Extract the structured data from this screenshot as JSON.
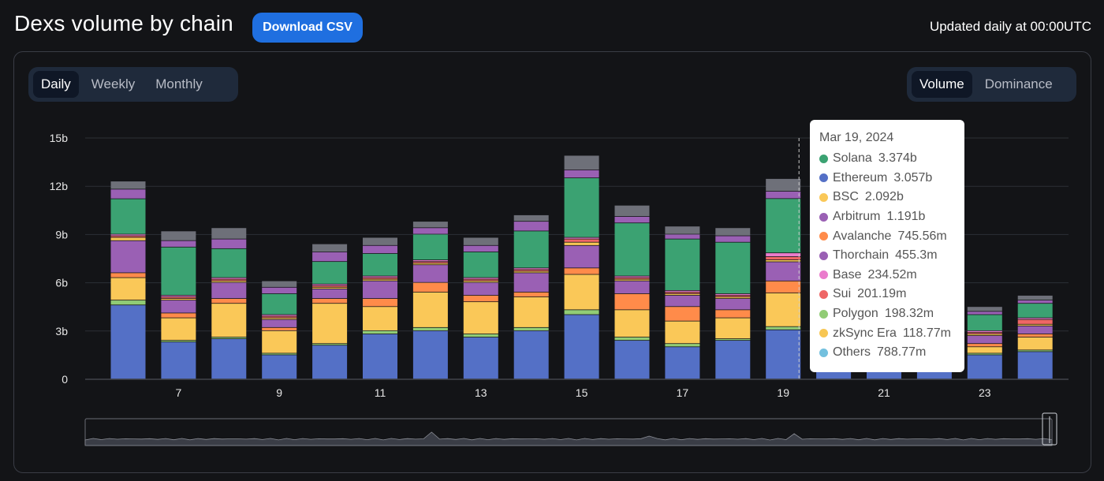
{
  "header": {
    "title": "Dexs volume by chain",
    "download_label": "Download CSV",
    "updated_text": "Updated daily at 00:00UTC"
  },
  "period_tabs": [
    {
      "label": "Daily",
      "active": true
    },
    {
      "label": "Weekly",
      "active": false
    },
    {
      "label": "Monthly",
      "active": false
    }
  ],
  "view_tabs": [
    {
      "label": "Volume",
      "active": true
    },
    {
      "label": "Dominance",
      "active": false
    }
  ],
  "chart_data": {
    "type": "bar",
    "stacked": true,
    "ylim": [
      0,
      15
    ],
    "y_ticks": [
      {
        "v": 0,
        "label": "0"
      },
      {
        "v": 3,
        "label": "3b"
      },
      {
        "v": 6,
        "label": "6b"
      },
      {
        "v": 9,
        "label": "9b"
      },
      {
        "v": 12,
        "label": "12b"
      },
      {
        "v": 15,
        "label": "15b"
      }
    ],
    "x": [
      6,
      7,
      8,
      9,
      10,
      11,
      12,
      13,
      14,
      15,
      16,
      17,
      18,
      19,
      20,
      21,
      22,
      23,
      24
    ],
    "x_tick_labels": [
      "7",
      "9",
      "11",
      "13",
      "15",
      "17",
      "19",
      "21",
      "23"
    ],
    "x_tick_values": [
      7,
      9,
      11,
      13,
      15,
      17,
      19,
      21,
      23
    ],
    "grid": true,
    "series": [
      {
        "name": "Ethereum",
        "color": "#5470c6",
        "values": [
          4.6,
          2.3,
          2.5,
          1.5,
          2.1,
          2.8,
          3.0,
          2.6,
          3.0,
          4.0,
          2.4,
          2.0,
          2.4,
          3.057,
          2.5,
          2.4,
          2.4,
          1.5,
          1.7
        ]
      },
      {
        "name": "Polygon",
        "color": "#91cc75",
        "values": [
          0.3,
          0.1,
          0.1,
          0.1,
          0.1,
          0.2,
          0.2,
          0.2,
          0.2,
          0.3,
          0.2,
          0.2,
          0.1,
          0.198,
          0.1,
          0.1,
          0.1,
          0.1,
          0.1
        ]
      },
      {
        "name": "BSC",
        "color": "#fac858",
        "values": [
          1.4,
          1.4,
          2.1,
          1.4,
          2.5,
          1.5,
          2.2,
          2.0,
          1.9,
          2.2,
          1.7,
          1.4,
          1.3,
          2.092,
          1.0,
          1.0,
          1.0,
          0.4,
          0.8
        ]
      },
      {
        "name": "Avalanche",
        "color": "#ff8b4a",
        "values": [
          0.3,
          0.3,
          0.3,
          0.2,
          0.3,
          0.5,
          0.6,
          0.4,
          0.3,
          0.4,
          1.0,
          0.9,
          0.5,
          0.746,
          0.3,
          0.3,
          0.3,
          0.2,
          0.2
        ]
      },
      {
        "name": "Arbitrum",
        "color": "#9a60b4",
        "values": [
          2.0,
          0.8,
          1.0,
          0.5,
          0.6,
          1.1,
          1.1,
          0.8,
          1.2,
          1.4,
          0.8,
          0.7,
          0.7,
          1.191,
          0.5,
          0.5,
          0.5,
          0.5,
          0.5
        ]
      },
      {
        "name": "zkSync Era",
        "color": "#f7c653",
        "values": [
          0.2,
          0.1,
          0.1,
          0.1,
          0.1,
          0.1,
          0.1,
          0.1,
          0.1,
          0.2,
          0.1,
          0.1,
          0.1,
          0.119,
          0.1,
          0.1,
          0.1,
          0.1,
          0.1
        ]
      },
      {
        "name": "Sui",
        "color": "#ee6666",
        "values": [
          0.1,
          0.1,
          0.1,
          0.1,
          0.1,
          0.1,
          0.1,
          0.1,
          0.1,
          0.2,
          0.1,
          0.1,
          0.1,
          0.201,
          0.1,
          0.1,
          0.1,
          0.1,
          0.3
        ]
      },
      {
        "name": "Base",
        "color": "#ea7ccc",
        "values": [
          0.1,
          0.1,
          0.1,
          0.1,
          0.1,
          0.1,
          0.1,
          0.1,
          0.1,
          0.1,
          0.1,
          0.1,
          0.1,
          0.235,
          0.1,
          0.1,
          0.1,
          0.1,
          0.1
        ]
      },
      {
        "name": "Solana",
        "color": "#3ba272",
        "values": [
          2.2,
          3.0,
          1.8,
          1.3,
          1.4,
          1.4,
          1.6,
          1.6,
          2.3,
          3.7,
          3.3,
          3.2,
          3.2,
          3.374,
          1.5,
          1.5,
          1.5,
          1.0,
          0.9
        ]
      },
      {
        "name": "Thorchain",
        "color": "#9a60b4",
        "values": [
          0.6,
          0.4,
          0.6,
          0.4,
          0.6,
          0.5,
          0.4,
          0.4,
          0.6,
          0.5,
          0.4,
          0.3,
          0.4,
          0.455,
          0.3,
          0.3,
          0.3,
          0.2,
          0.2
        ]
      },
      {
        "name": "Others",
        "color": "#6e7079",
        "values": [
          0.5,
          0.6,
          0.7,
          0.4,
          0.5,
          0.5,
          0.4,
          0.5,
          0.4,
          0.9,
          0.7,
          0.5,
          0.5,
          0.789,
          0.4,
          0.4,
          0.4,
          0.3,
          0.3
        ]
      }
    ]
  },
  "tooltip": {
    "date": "Mar 19, 2024",
    "rows": [
      {
        "name": "Solana",
        "value": "3.374b",
        "color": "#3ba272"
      },
      {
        "name": "Ethereum",
        "value": "3.057b",
        "color": "#5470c6"
      },
      {
        "name": "BSC",
        "value": "2.092b",
        "color": "#fac858"
      },
      {
        "name": "Arbitrum",
        "value": "1.191b",
        "color": "#9a60b4"
      },
      {
        "name": "Avalanche",
        "value": "745.56m",
        "color": "#ff8b4a"
      },
      {
        "name": "Thorchain",
        "value": "455.3m",
        "color": "#9a60b4"
      },
      {
        "name": "Base",
        "value": "234.52m",
        "color": "#ea7ccc"
      },
      {
        "name": "Sui",
        "value": "201.19m",
        "color": "#ee6666"
      },
      {
        "name": "Polygon",
        "value": "198.32m",
        "color": "#91cc75"
      },
      {
        "name": "zkSync Era",
        "value": "118.77m",
        "color": "#f7c653"
      },
      {
        "name": "Others",
        "value": "788.77m",
        "color": "#73c0de"
      }
    ]
  },
  "colors": {
    "accent": "#1f6fe0",
    "panel_border": "#3a3d46",
    "grid": "#2c2f36"
  }
}
